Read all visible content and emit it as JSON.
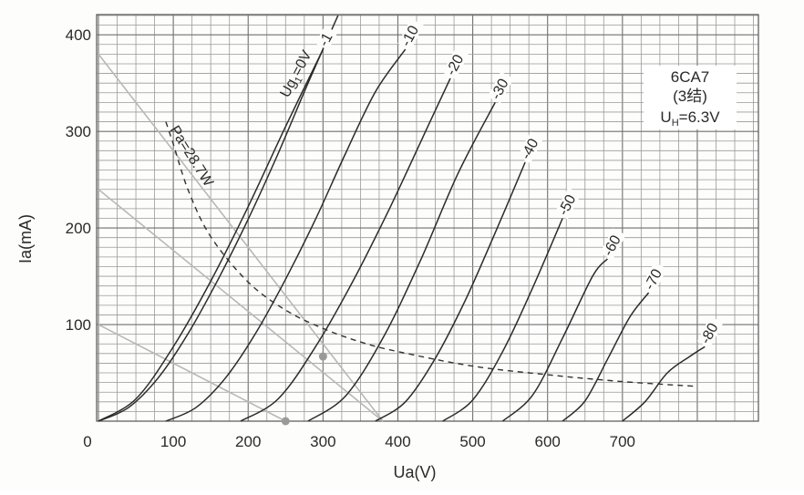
{
  "chart_data": {
    "type": "line",
    "xlabel": "Ua(V)",
    "ylabel": "Ia(mA)",
    "xlim": [
      0,
      850
    ],
    "ylim": [
      0,
      420
    ],
    "x_ticks": [
      0,
      100,
      200,
      300,
      400,
      500,
      600,
      700
    ],
    "y_ticks": [
      100,
      200,
      300,
      400
    ],
    "grid": true,
    "tube": {
      "name": "6CA7",
      "mode": "(3结)",
      "heater_base": "U",
      "heater_sub": "H",
      "heater_value": "=6.3V"
    },
    "series": [
      {
        "name": "Ug1=0V",
        "label_main": "Ug",
        "label_sub": "1",
        "label_rest": "=0V",
        "x": [
          0,
          40,
          80,
          120,
          160,
          200,
          240,
          280,
          320
        ],
        "y": [
          0,
          14,
          45,
          91,
          147,
          209,
          277,
          350,
          420
        ]
      },
      {
        "name": "-1",
        "x": [
          0,
          50,
          100,
          150,
          200,
          250,
          300
        ],
        "y": [
          0,
          23,
          77,
          145,
          222,
          305,
          385
        ]
      },
      {
        "name": "-10",
        "x": [
          90,
          130,
          170,
          210,
          250,
          290,
          330,
          370,
          410
        ],
        "y": [
          0,
          14,
          45,
          91,
          147,
          209,
          277,
          341,
          385
        ]
      },
      {
        "name": "-20",
        "x": [
          190,
          240,
          290,
          340,
          390,
          440,
          470
        ],
        "y": [
          0,
          23,
          77,
          145,
          222,
          305,
          355
        ]
      },
      {
        "name": "-30",
        "x": [
          280,
          330,
          380,
          430,
          480,
          530
        ],
        "y": [
          0,
          26,
          86,
          166,
          256,
          330
        ]
      },
      {
        "name": "-40",
        "x": [
          370,
          410,
          450,
          490,
          530,
          570
        ],
        "y": [
          0,
          20,
          65,
          125,
          195,
          268
        ]
      },
      {
        "name": "-50",
        "x": [
          460,
          500,
          540,
          580,
          620
        ],
        "y": [
          0,
          22,
          72,
          138,
          210
        ]
      },
      {
        "name": "-60",
        "x": [
          540,
          580,
          620,
          660,
          680
        ],
        "y": [
          0,
          27,
          86,
          150,
          168
        ]
      },
      {
        "name": "-70",
        "x": [
          620,
          650,
          680,
          710,
          735
        ],
        "y": [
          0,
          21,
          64,
          108,
          133
        ]
      },
      {
        "name": "-80",
        "x": [
          700,
          730,
          760,
          790,
          810
        ],
        "y": [
          0,
          20,
          50,
          67,
          77
        ]
      }
    ],
    "power_curve": {
      "label": "Pa=28.7W",
      "x": [
        90,
        100,
        120,
        150,
        200,
        250,
        300,
        350,
        400,
        500,
        600,
        700,
        800
      ],
      "y": [
        310,
        287,
        239,
        191,
        144,
        115,
        96,
        82,
        72,
        57,
        48,
        41,
        36
      ]
    },
    "load_lines": [
      {
        "x": [
          0,
          380
        ],
        "y": [
          380,
          0
        ]
      },
      {
        "x": [
          0,
          380
        ],
        "y": [
          240,
          0
        ]
      },
      {
        "x": [
          0,
          250
        ],
        "y": [
          100,
          0
        ]
      }
    ],
    "operating_points": [
      {
        "x": 250,
        "y": 0
      },
      {
        "x": 300,
        "y": 67
      }
    ]
  }
}
